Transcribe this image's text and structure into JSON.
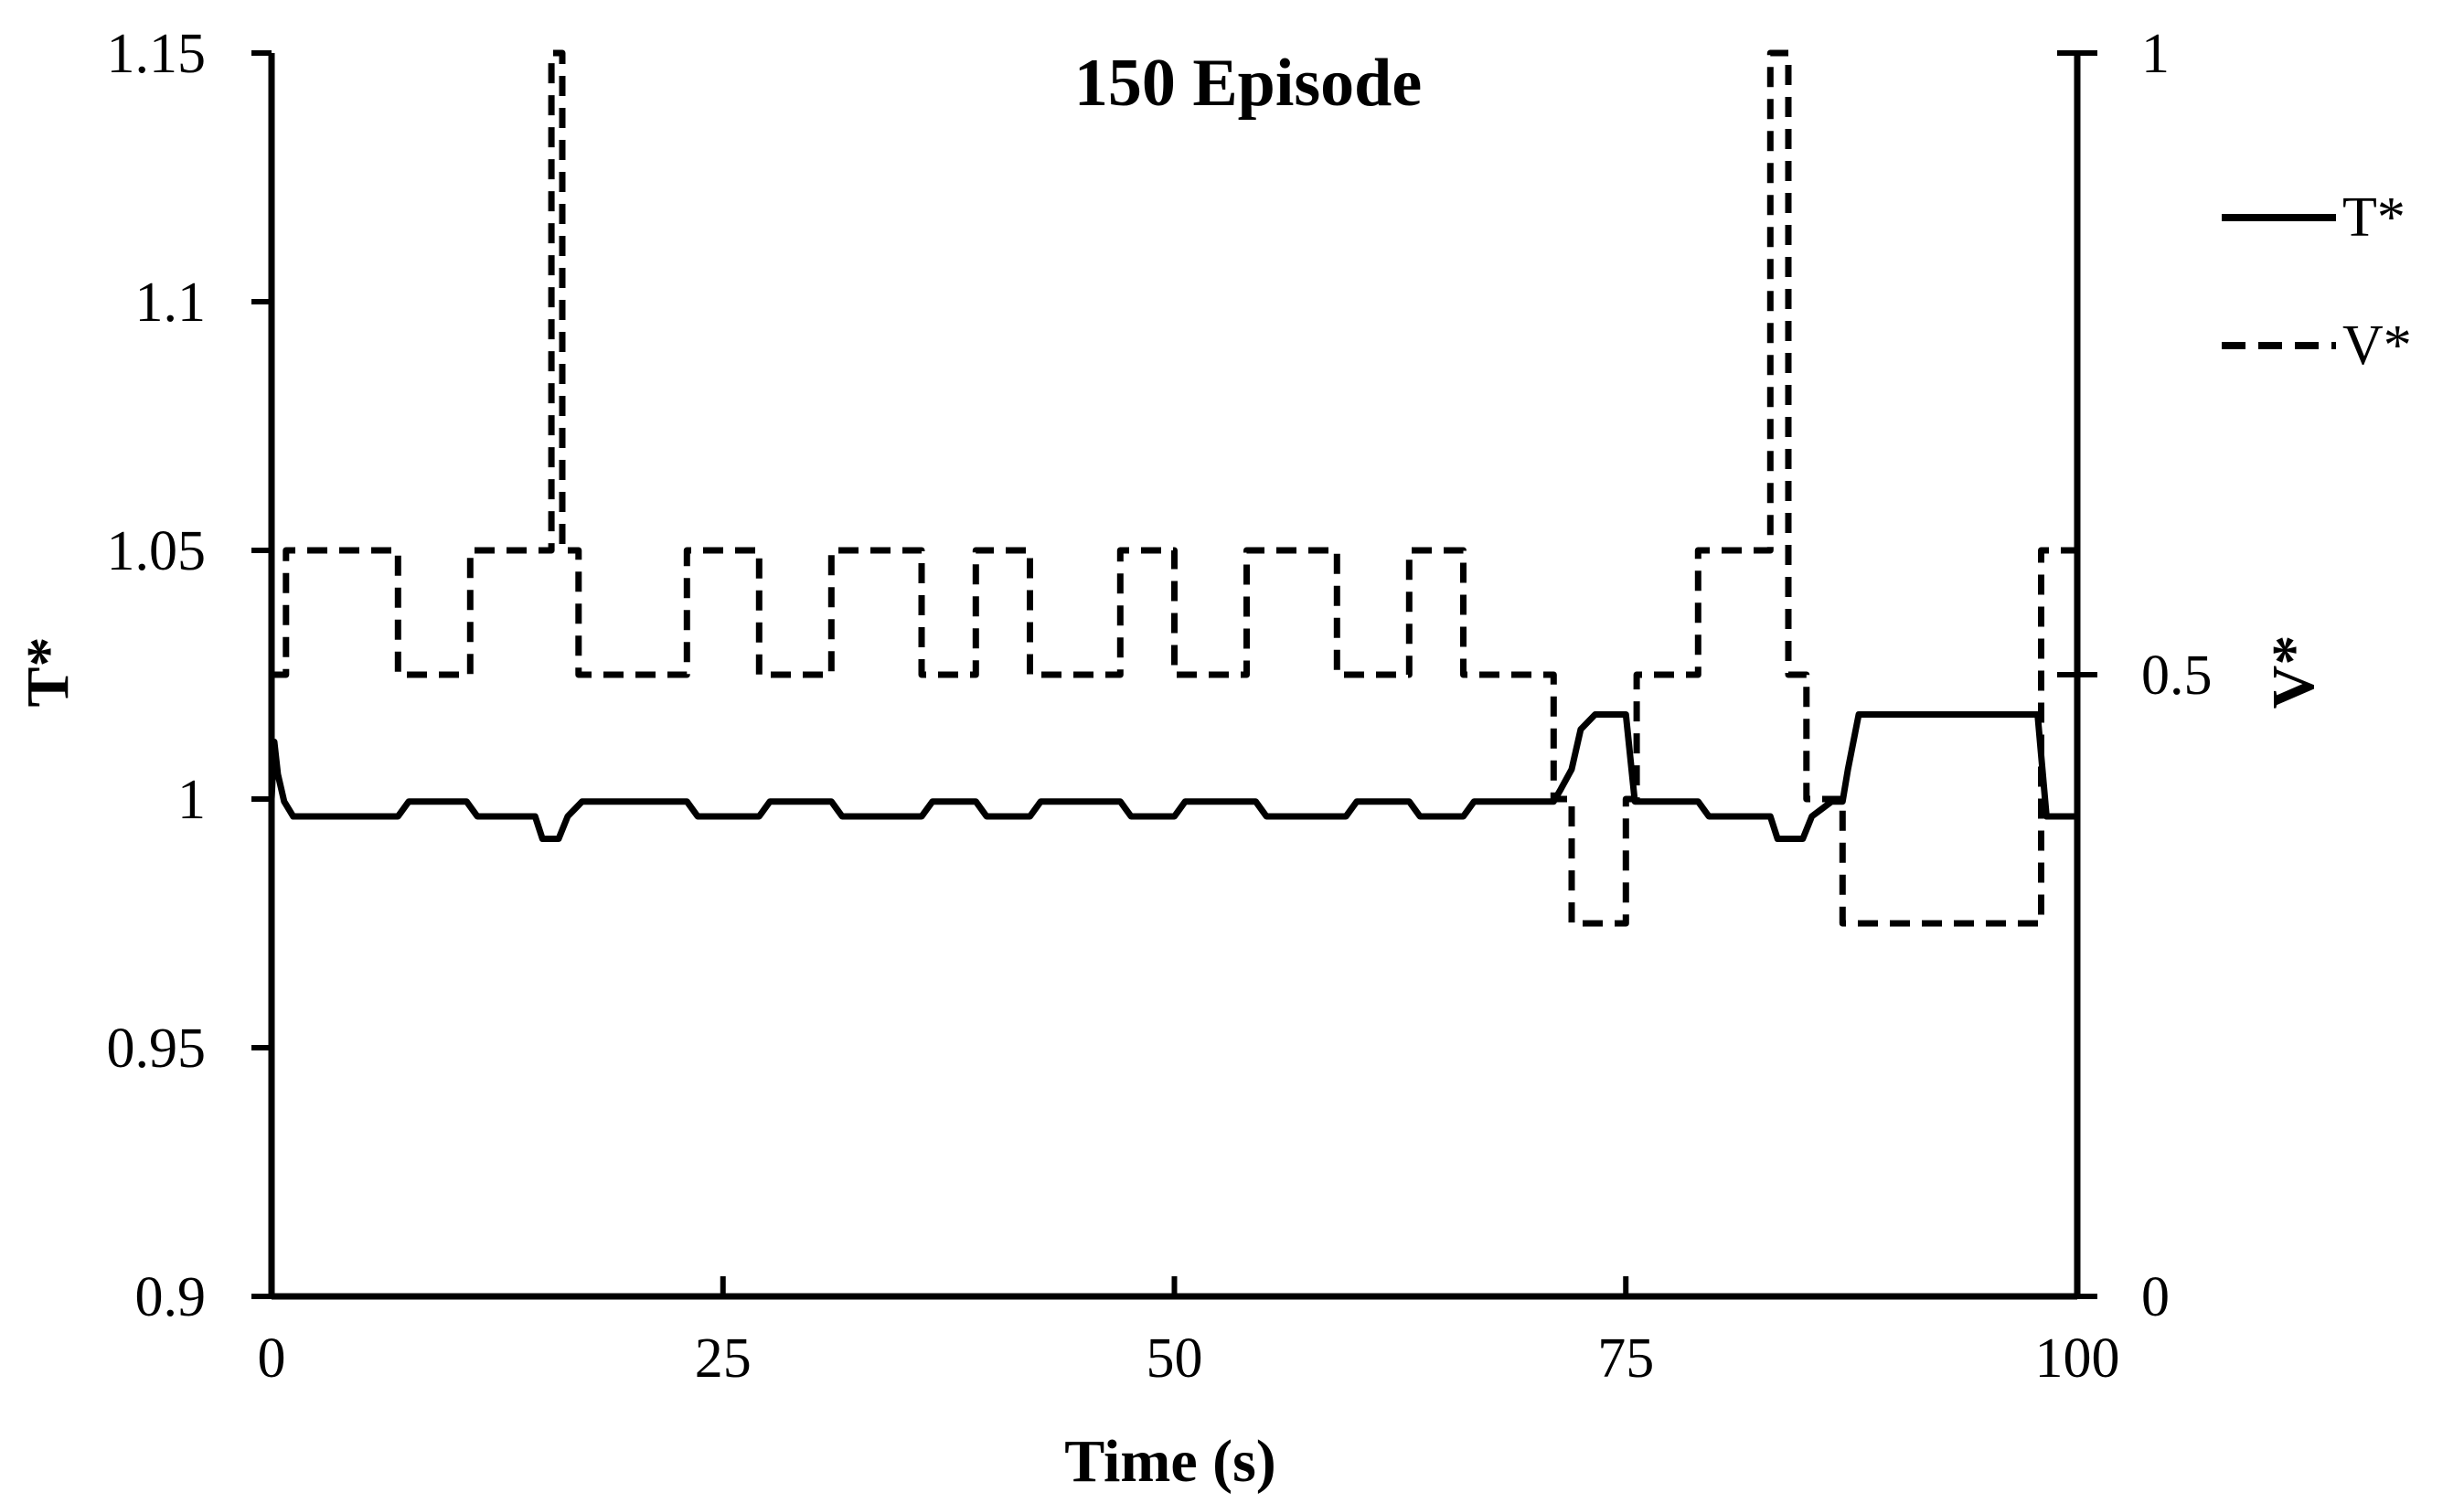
{
  "chart_data": {
    "type": "line",
    "title": "150 Episode",
    "xlabel": "Time (s)",
    "ylabel_left": "T*",
    "ylabel_right": "V*",
    "xlim": [
      0,
      100
    ],
    "ylim_left": [
      0.9,
      1.15
    ],
    "ylim_right": [
      0,
      1
    ],
    "x_ticks": [
      0,
      25,
      50,
      75,
      100
    ],
    "x_tick_labels": [
      "0",
      "25",
      "50",
      "75",
      "100"
    ],
    "y_left_ticks": [
      0.9,
      0.95,
      1,
      1.05,
      1.1,
      1.15
    ],
    "y_left_tick_labels": [
      "0.9",
      "0.95",
      "1",
      "1.05",
      "1.1",
      "1.15"
    ],
    "y_right_ticks": [
      0,
      0.5,
      1
    ],
    "y_right_tick_labels": [
      "0",
      "0.5",
      "1"
    ],
    "grid": false,
    "legend_position": "top-right",
    "series": [
      {
        "name": "T*",
        "axis": "left",
        "style": "solid",
        "x": [
          0,
          0.15,
          0.35,
          0.7,
          1.2,
          7.0,
          7.6,
          10.8,
          11.4,
          14.6,
          15.0,
          15.9,
          16.4,
          17.2,
          23.0,
          23.6,
          27.0,
          27.6,
          31.0,
          31.6,
          36.0,
          36.6,
          39.0,
          39.6,
          42.0,
          42.6,
          47.0,
          47.6,
          50.0,
          50.6,
          54.5,
          55.1,
          59.5,
          60.1,
          63.0,
          63.6,
          66.0,
          66.6,
          71.0,
          71.4,
          72.0,
          72.5,
          73.3,
          75.0,
          75.5,
          79.0,
          79.6,
          83.0,
          83.4,
          84.8,
          85.3,
          86.4,
          87.0,
          87.3,
          87.9,
          97.8,
          98.3,
          100
        ],
        "values": [
          1.0,
          1.0115,
          1.005,
          0.9995,
          0.9965,
          0.9965,
          0.9995,
          0.9995,
          0.9965,
          0.9965,
          0.992,
          0.992,
          0.9965,
          0.9995,
          0.9995,
          0.9965,
          0.9965,
          0.9995,
          0.9995,
          0.9965,
          0.9965,
          0.9995,
          0.9995,
          0.9965,
          0.9965,
          0.9995,
          0.9995,
          0.9965,
          0.9965,
          0.9995,
          0.9995,
          0.9965,
          0.9965,
          0.9995,
          0.9995,
          0.9965,
          0.9965,
          0.9995,
          0.9995,
          1.002,
          1.006,
          1.014,
          1.017,
          1.017,
          0.9995,
          0.9995,
          0.9965,
          0.9965,
          0.992,
          0.992,
          0.9965,
          0.9995,
          0.9995,
          1.006,
          1.017,
          1.017,
          0.9965,
          0.9965
        ]
      },
      {
        "name": "V*",
        "axis": "right",
        "style": "dashed",
        "x": [
          0,
          0.8,
          0.8,
          7.0,
          7.0,
          11.0,
          11.0,
          14.8,
          14.8,
          15.5,
          15.5,
          16.1,
          16.1,
          17.0,
          17.0,
          23.0,
          23.0,
          27.0,
          27.0,
          31.0,
          31.0,
          36.0,
          36.0,
          39.0,
          39.0,
          42.0,
          42.0,
          47.0,
          47.0,
          50.0,
          50.0,
          54.0,
          54.0,
          59.0,
          59.0,
          63.0,
          63.0,
          66.0,
          66.0,
          71.0,
          71.0,
          72.0,
          72.0,
          75.0,
          75.0,
          75.6,
          75.6,
          79.0,
          79.0,
          83.0,
          83.0,
          84.0,
          84.0,
          85.0,
          85.0,
          87.0,
          87.0,
          98.0,
          98.0,
          100
        ],
        "values": [
          0.5,
          0.5,
          0.6,
          0.6,
          0.5,
          0.5,
          0.6,
          0.6,
          0.6,
          0.6,
          1.0,
          1.0,
          0.6,
          0.6,
          0.5,
          0.5,
          0.6,
          0.6,
          0.5,
          0.5,
          0.6,
          0.6,
          0.5,
          0.5,
          0.6,
          0.6,
          0.5,
          0.5,
          0.6,
          0.6,
          0.5,
          0.5,
          0.6,
          0.6,
          0.5,
          0.5,
          0.6,
          0.6,
          0.5,
          0.5,
          0.4,
          0.4,
          0.3,
          0.3,
          0.4,
          0.4,
          0.5,
          0.5,
          0.6,
          0.6,
          1.0,
          1.0,
          0.5,
          0.5,
          0.4,
          0.4,
          0.3,
          0.3,
          0.6,
          0.6
        ]
      }
    ]
  }
}
